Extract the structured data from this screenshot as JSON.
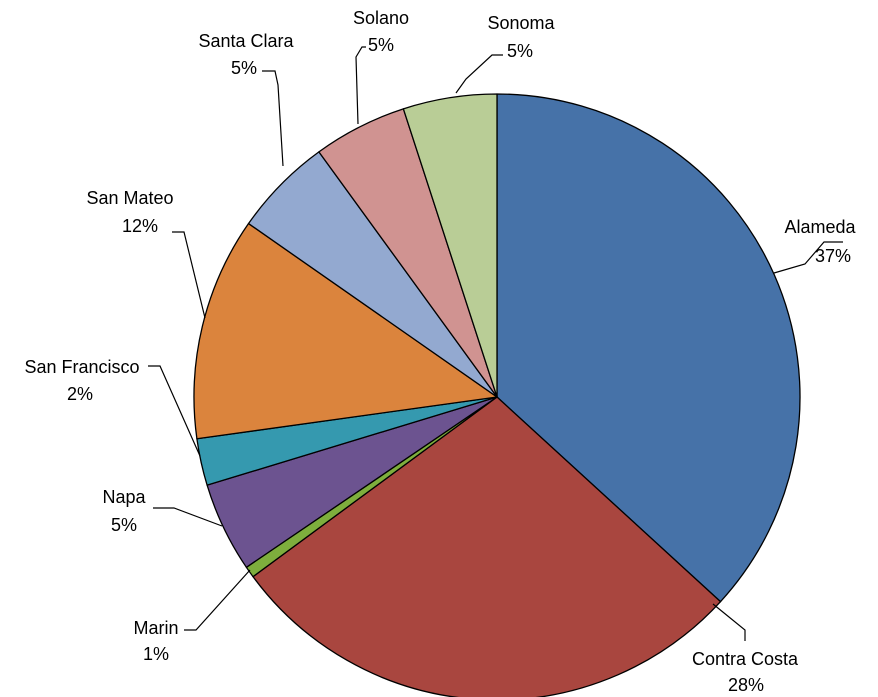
{
  "chart_data": {
    "type": "pie",
    "title": "",
    "start_angle_deg": 0,
    "direction": "clockwise",
    "slices": [
      {
        "label": "Alameda",
        "percent_label": "37%",
        "value": 36.8,
        "color": "#4672A8"
      },
      {
        "label": "Contra Costa",
        "percent_label": "28%",
        "value": 28.1,
        "color": "#A9463F"
      },
      {
        "label": "Marin",
        "percent_label": "1%",
        "value": 0.6,
        "color": "#7EAE3D"
      },
      {
        "label": "Napa",
        "percent_label": "5%",
        "value": 4.8,
        "color": "#6C5390"
      },
      {
        "label": "San Francisco",
        "percent_label": "2%",
        "value": 2.5,
        "color": "#3599AF"
      },
      {
        "label": "San Mateo",
        "percent_label": "12%",
        "value": 11.9,
        "color": "#DB843D"
      },
      {
        "label": "Santa Clara",
        "percent_label": "5%",
        "value": 5.3,
        "color": "#93A9D0"
      },
      {
        "label": "Solano",
        "percent_label": "5%",
        "value": 5.0,
        "color": "#D09391"
      },
      {
        "label": "Sonoma",
        "percent_label": "5%",
        "value": 5.0,
        "color": "#B9CD96"
      }
    ]
  }
}
